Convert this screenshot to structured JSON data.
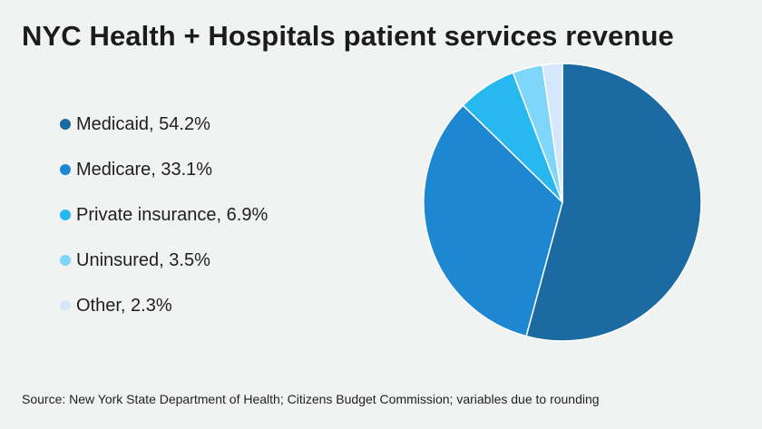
{
  "title": "NYC Health + Hospitals patient services revenue",
  "source": "Source: New York State Department of Health; Citizens Budget Commission; variables due to rounding",
  "legend": [
    {
      "label": "Medicaid, 54.2%",
      "color": "#1b6aa1"
    },
    {
      "label": "Medicare, 33.1%",
      "color": "#1e87d2"
    },
    {
      "label": "Private insurance, 6.9%",
      "color": "#27b8ef"
    },
    {
      "label": "Uninsured, 3.5%",
      "color": "#7ed6fa"
    },
    {
      "label": "Other, 2.3%",
      "color": "#d4e7fb"
    }
  ],
  "chart_data": {
    "type": "pie",
    "title": "NYC Health + Hospitals patient services revenue",
    "categories": [
      "Medicaid",
      "Medicare",
      "Private insurance",
      "Uninsured",
      "Other"
    ],
    "values": [
      54.2,
      33.1,
      6.9,
      3.5,
      2.3
    ],
    "colors": [
      "#1b6aa1",
      "#1e87d2",
      "#27b8ef",
      "#7ed6fa",
      "#d4e7fb"
    ],
    "start": "12 o'clock",
    "direction": "clockwise",
    "legend_position": "left"
  }
}
